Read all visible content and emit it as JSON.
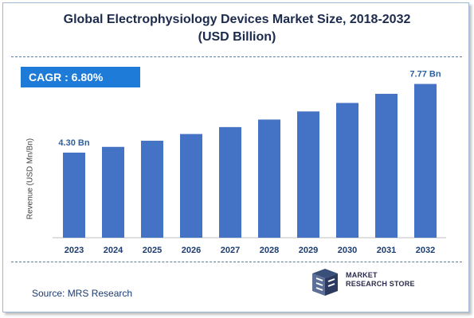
{
  "header": {
    "title_line1": "Global Electrophysiology Devices Market Size, 2018-2032",
    "title_line2": "(USD Billion)"
  },
  "cagr": "CAGR :  6.80%",
  "source": "Source: MRS Research",
  "logo": {
    "line1": "MARKET",
    "line2": "RESEARCH STORE"
  },
  "colors": {
    "bar": "#4472c4",
    "cagr_bg": "#1e7bd8",
    "title": "#1c2b4d",
    "value_label": "#2e5f9e"
  },
  "chart_data": {
    "type": "bar",
    "title": "Global Electrophysiology Devices Market Size, 2018-2032 (USD Billion)",
    "xlabel": "",
    "ylabel": "Revenue (USD Mn/Bn)",
    "categories": [
      "2023",
      "2024",
      "2025",
      "2026",
      "2027",
      "2028",
      "2029",
      "2030",
      "2031",
      "2032"
    ],
    "values": [
      4.3,
      4.59,
      4.9,
      5.24,
      5.59,
      5.97,
      6.38,
      6.81,
      7.27,
      7.77
    ],
    "data_labels": {
      "0": "4.30 Bn",
      "9": "7.77 Bn"
    },
    "ylim": [
      0,
      9.2
    ],
    "grid": false,
    "legend": "none"
  }
}
